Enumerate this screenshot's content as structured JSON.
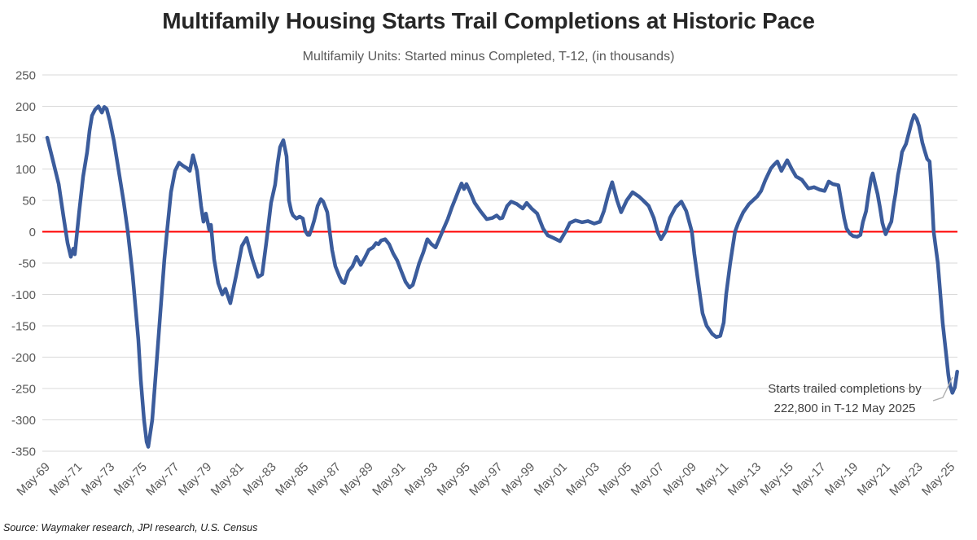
{
  "header": {
    "title": "Multifamily Housing Starts Trail Completions at Historic Pace",
    "subtitle": "Multifamily Units: Started minus Completed, T-12, (in thousands)"
  },
  "annotation": {
    "line1": "Starts trailed completions by",
    "line2": "222,800 in T-12 May 2025"
  },
  "source_note": "Source: Waymaker research, JPI research, U.S. Census",
  "colors": {
    "series_line": "#3B5C9C",
    "zero_line": "#FF0000",
    "gridline": "#D9D9D9",
    "tick_text": "#595959",
    "title_text": "#262626",
    "annotation_text": "#404040",
    "leader_line": "#AFAFAF"
  },
  "chart_data": {
    "type": "line",
    "title": "Multifamily Housing Starts Trail Completions at Historic Pace",
    "subtitle": "Multifamily Units: Started minus Completed, T-12, (in thousands)",
    "xlabel": "",
    "ylabel": "",
    "ylim": [
      -350,
      250
    ],
    "grid": true,
    "zero_reference_line": 0,
    "y_ticks": [
      250,
      200,
      150,
      100,
      50,
      0,
      -50,
      -100,
      -150,
      -200,
      -250,
      -300,
      -350
    ],
    "x_tick_labels": [
      "May-69",
      "May-71",
      "May-73",
      "May-75",
      "May-77",
      "May-79",
      "May-81",
      "May-83",
      "May-85",
      "May-87",
      "May-89",
      "May-91",
      "May-93",
      "May-95",
      "May-97",
      "May-99",
      "May-01",
      "May-03",
      "May-05",
      "May-07",
      "May-09",
      "May-11",
      "May-13",
      "May-15",
      "May-17",
      "May-19",
      "May-21",
      "May-23",
      "May-25"
    ],
    "callout": {
      "value_thousands": -222.8,
      "period": "T-12 May 2025"
    },
    "series": [
      {
        "name": "Multifamily Units: Started minus Completed (T-12, thousands)",
        "color": "#3B5C9C",
        "points": [
          [
            1969.45,
            150
          ],
          [
            1969.8,
            114
          ],
          [
            1970.16,
            76
          ],
          [
            1970.46,
            24
          ],
          [
            1970.71,
            -18
          ],
          [
            1970.91,
            -40
          ],
          [
            1971.06,
            -27
          ],
          [
            1971.16,
            -36
          ],
          [
            1971.42,
            30
          ],
          [
            1971.67,
            88
          ],
          [
            1971.92,
            127
          ],
          [
            1972.07,
            161
          ],
          [
            1972.22,
            185
          ],
          [
            1972.42,
            195
          ],
          [
            1972.62,
            200
          ],
          [
            1972.83,
            190
          ],
          [
            1972.98,
            199
          ],
          [
            1973.13,
            196
          ],
          [
            1973.33,
            176
          ],
          [
            1973.58,
            144
          ],
          [
            1973.93,
            88
          ],
          [
            1974.19,
            46
          ],
          [
            1974.44,
            0
          ],
          [
            1974.74,
            -70
          ],
          [
            1975.09,
            -172
          ],
          [
            1975.24,
            -236
          ],
          [
            1975.44,
            -300
          ],
          [
            1975.6,
            -335
          ],
          [
            1975.7,
            -343
          ],
          [
            1975.95,
            -300
          ],
          [
            1976.2,
            -215
          ],
          [
            1976.45,
            -130
          ],
          [
            1976.7,
            -44
          ],
          [
            1976.86,
            0
          ],
          [
            1977.11,
            63
          ],
          [
            1977.36,
            97
          ],
          [
            1977.61,
            110
          ],
          [
            1977.86,
            105
          ],
          [
            1978.11,
            101
          ],
          [
            1978.27,
            97
          ],
          [
            1978.47,
            122
          ],
          [
            1978.72,
            97
          ],
          [
            1978.97,
            41
          ],
          [
            1979.12,
            16
          ],
          [
            1979.27,
            29
          ],
          [
            1979.48,
            3
          ],
          [
            1979.58,
            11
          ],
          [
            1979.78,
            -44
          ],
          [
            1980.03,
            -82
          ],
          [
            1980.28,
            -100
          ],
          [
            1980.48,
            -91
          ],
          [
            1980.78,
            -114
          ],
          [
            1981.14,
            -70
          ],
          [
            1981.49,
            -23
          ],
          [
            1981.79,
            -10
          ],
          [
            1982.14,
            -44
          ],
          [
            1982.5,
            -72
          ],
          [
            1982.75,
            -68
          ],
          [
            1983.0,
            -18
          ],
          [
            1983.3,
            46
          ],
          [
            1983.55,
            75
          ],
          [
            1983.71,
            110
          ],
          [
            1983.86,
            135
          ],
          [
            1984.06,
            146
          ],
          [
            1984.26,
            120
          ],
          [
            1984.41,
            50
          ],
          [
            1984.56,
            32
          ],
          [
            1984.66,
            26
          ],
          [
            1984.87,
            21
          ],
          [
            1985.07,
            24
          ],
          [
            1985.27,
            21
          ],
          [
            1985.42,
            1
          ],
          [
            1985.57,
            -5
          ],
          [
            1985.67,
            -5
          ],
          [
            1985.82,
            5
          ],
          [
            1985.97,
            18
          ],
          [
            1986.18,
            41
          ],
          [
            1986.38,
            52
          ],
          [
            1986.53,
            48
          ],
          [
            1986.78,
            31
          ],
          [
            1986.93,
            0
          ],
          [
            1987.08,
            -29
          ],
          [
            1987.28,
            -55
          ],
          [
            1987.54,
            -72
          ],
          [
            1987.69,
            -80
          ],
          [
            1987.84,
            -82
          ],
          [
            1988.09,
            -63
          ],
          [
            1988.34,
            -55
          ],
          [
            1988.59,
            -40
          ],
          [
            1988.85,
            -53
          ],
          [
            1989.1,
            -42
          ],
          [
            1989.35,
            -29
          ],
          [
            1989.6,
            -25
          ],
          [
            1989.8,
            -18
          ],
          [
            1989.95,
            -20
          ],
          [
            1990.11,
            -14
          ],
          [
            1990.36,
            -12
          ],
          [
            1990.61,
            -20
          ],
          [
            1990.86,
            -35
          ],
          [
            1991.11,
            -46
          ],
          [
            1991.36,
            -63
          ],
          [
            1991.62,
            -80
          ],
          [
            1991.87,
            -89
          ],
          [
            1992.07,
            -85
          ],
          [
            1992.22,
            -72
          ],
          [
            1992.47,
            -50
          ],
          [
            1992.72,
            -33
          ],
          [
            1992.97,
            -12
          ],
          [
            1993.23,
            -20
          ],
          [
            1993.48,
            -25
          ],
          [
            1993.73,
            -10
          ],
          [
            1993.98,
            5
          ],
          [
            1994.23,
            20
          ],
          [
            1994.48,
            38
          ],
          [
            1994.74,
            55
          ],
          [
            1994.89,
            65
          ],
          [
            1995.09,
            77
          ],
          [
            1995.24,
            68
          ],
          [
            1995.39,
            76
          ],
          [
            1995.59,
            65
          ],
          [
            1995.9,
            46
          ],
          [
            1996.25,
            33
          ],
          [
            1996.65,
            20
          ],
          [
            1997.0,
            22
          ],
          [
            1997.26,
            26
          ],
          [
            1997.46,
            21
          ],
          [
            1997.61,
            22
          ],
          [
            1997.91,
            41
          ],
          [
            1998.16,
            48
          ],
          [
            1998.52,
            44
          ],
          [
            1998.87,
            37
          ],
          [
            1999.12,
            46
          ],
          [
            1999.42,
            37
          ],
          [
            1999.77,
            29
          ],
          [
            2000.13,
            5
          ],
          [
            2000.43,
            -6
          ],
          [
            2000.78,
            -10
          ],
          [
            2001.18,
            -15
          ],
          [
            2001.54,
            1
          ],
          [
            2001.79,
            14
          ],
          [
            2002.14,
            18
          ],
          [
            2002.54,
            15
          ],
          [
            2002.9,
            17
          ],
          [
            2003.3,
            13
          ],
          [
            2003.65,
            16
          ],
          [
            2003.9,
            33
          ],
          [
            2004.16,
            59
          ],
          [
            2004.41,
            79
          ],
          [
            2004.71,
            50
          ],
          [
            2004.96,
            31
          ],
          [
            2005.31,
            50
          ],
          [
            2005.67,
            63
          ],
          [
            2006.07,
            56
          ],
          [
            2006.32,
            50
          ],
          [
            2006.67,
            41
          ],
          [
            2006.98,
            22
          ],
          [
            2007.23,
            -1
          ],
          [
            2007.43,
            -12
          ],
          [
            2007.73,
            1
          ],
          [
            2007.98,
            22
          ],
          [
            2008.33,
            39
          ],
          [
            2008.69,
            48
          ],
          [
            2008.99,
            33
          ],
          [
            2009.34,
            0
          ],
          [
            2009.49,
            -35
          ],
          [
            2009.74,
            -82
          ],
          [
            2010.0,
            -130
          ],
          [
            2010.25,
            -150
          ],
          [
            2010.6,
            -163
          ],
          [
            2010.85,
            -168
          ],
          [
            2011.1,
            -166
          ],
          [
            2011.31,
            -145
          ],
          [
            2011.46,
            -100
          ],
          [
            2011.71,
            -50
          ],
          [
            2012.01,
            0
          ],
          [
            2012.21,
            14
          ],
          [
            2012.52,
            31
          ],
          [
            2012.87,
            44
          ],
          [
            2013.12,
            50
          ],
          [
            2013.37,
            56
          ],
          [
            2013.62,
            65
          ],
          [
            2013.88,
            82
          ],
          [
            2014.23,
            101
          ],
          [
            2014.43,
            107
          ],
          [
            2014.63,
            112
          ],
          [
            2014.88,
            97
          ],
          [
            2015.24,
            114
          ],
          [
            2015.54,
            99
          ],
          [
            2015.79,
            88
          ],
          [
            2016.14,
            83
          ],
          [
            2016.55,
            69
          ],
          [
            2016.9,
            71
          ],
          [
            2017.25,
            67
          ],
          [
            2017.55,
            65
          ],
          [
            2017.81,
            80
          ],
          [
            2018.06,
            76
          ],
          [
            2018.41,
            74
          ],
          [
            2018.56,
            52
          ],
          [
            2018.76,
            22
          ],
          [
            2018.91,
            5
          ],
          [
            2019.12,
            -3
          ],
          [
            2019.32,
            -7
          ],
          [
            2019.57,
            -8
          ],
          [
            2019.77,
            -5
          ],
          [
            2019.92,
            15
          ],
          [
            2020.12,
            33
          ],
          [
            2020.27,
            60
          ],
          [
            2020.43,
            85
          ],
          [
            2020.53,
            93
          ],
          [
            2020.68,
            76
          ],
          [
            2020.83,
            60
          ],
          [
            2020.98,
            38
          ],
          [
            2021.13,
            14
          ],
          [
            2021.33,
            -4
          ],
          [
            2021.48,
            5
          ],
          [
            2021.68,
            16
          ],
          [
            2021.84,
            45
          ],
          [
            2021.94,
            60
          ],
          [
            2022.09,
            90
          ],
          [
            2022.24,
            110
          ],
          [
            2022.34,
            127
          ],
          [
            2022.49,
            135
          ],
          [
            2022.59,
            140
          ],
          [
            2022.79,
            160
          ],
          [
            2022.94,
            175
          ],
          [
            2023.09,
            186
          ],
          [
            2023.25,
            180
          ],
          [
            2023.4,
            168
          ],
          [
            2023.6,
            142
          ],
          [
            2023.75,
            129
          ],
          [
            2023.9,
            116
          ],
          [
            2024.05,
            112
          ],
          [
            2024.15,
            75
          ],
          [
            2024.3,
            0
          ],
          [
            2024.56,
            -50
          ],
          [
            2024.71,
            -98
          ],
          [
            2024.86,
            -146
          ],
          [
            2025.06,
            -193
          ],
          [
            2025.21,
            -228
          ],
          [
            2025.31,
            -245
          ],
          [
            2025.46,
            -257
          ],
          [
            2025.61,
            -248
          ],
          [
            2025.76,
            -223
          ]
        ]
      }
    ]
  }
}
